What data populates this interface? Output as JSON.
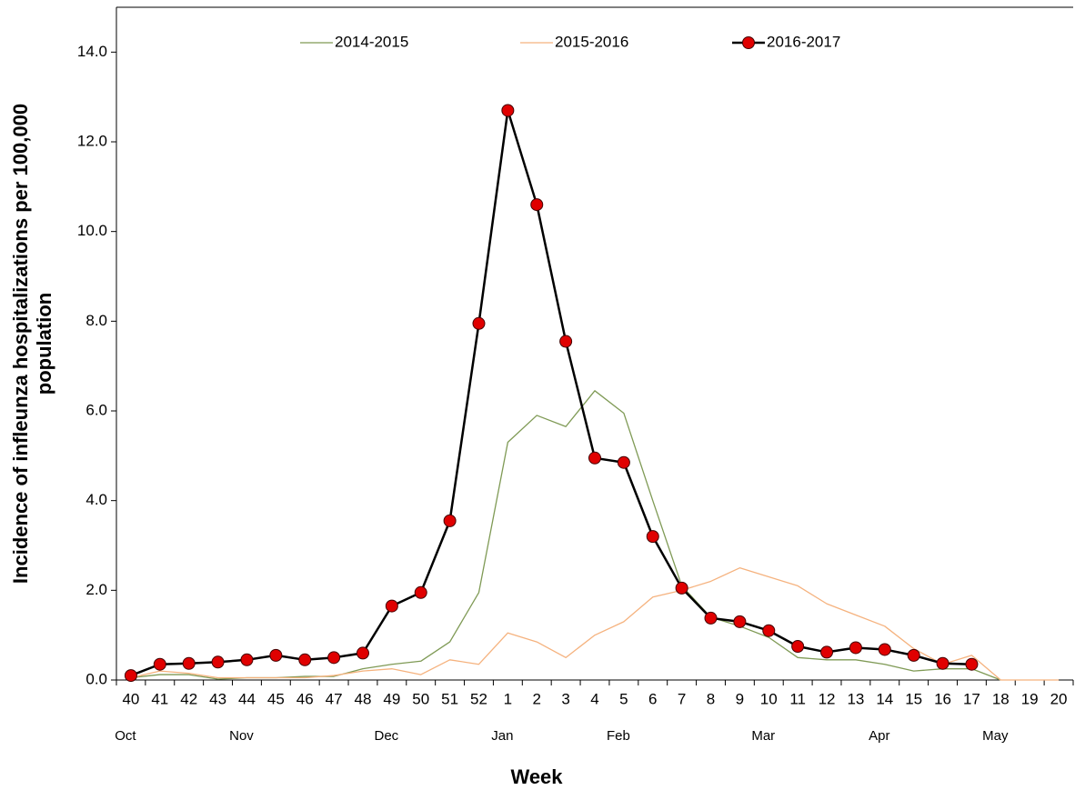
{
  "chart_data": {
    "type": "line",
    "xlabel": "Week",
    "ylabel": [
      "Incidence of infleunza hospitalizations per 100,000",
      "population"
    ],
    "categories": [
      "40",
      "41",
      "42",
      "43",
      "44",
      "45",
      "46",
      "47",
      "48",
      "49",
      "50",
      "51",
      "52",
      "1",
      "2",
      "3",
      "4",
      "5",
      "6",
      "7",
      "8",
      "9",
      "10",
      "11",
      "12",
      "13",
      "14",
      "15",
      "16",
      "17",
      "18",
      "19",
      "20"
    ],
    "months": [
      "Oct",
      null,
      null,
      null,
      "Nov",
      null,
      null,
      null,
      null,
      "Dec",
      null,
      null,
      null,
      "Jan",
      null,
      null,
      null,
      "Feb",
      null,
      null,
      null,
      null,
      "Mar",
      null,
      null,
      null,
      "Apr",
      null,
      null,
      null,
      "May",
      null,
      null
    ],
    "ylim": [
      0,
      15
    ],
    "yticks": [
      {
        "value": 0,
        "label": "0.0"
      },
      {
        "value": 2,
        "label": "2.0"
      },
      {
        "value": 4,
        "label": "4.0"
      },
      {
        "value": 6,
        "label": "6.0"
      },
      {
        "value": 8,
        "label": "8.0"
      },
      {
        "value": 10,
        "label": "10.0"
      },
      {
        "value": 12,
        "label": "12.0"
      },
      {
        "value": 14,
        "label": "14.0"
      }
    ],
    "grid": false,
    "legend": "top",
    "series": [
      {
        "name": "2014-2015",
        "color": "#7f9a55",
        "width": 1.3,
        "marker": false,
        "values": [
          0.05,
          0.12,
          0.12,
          0.02,
          0.05,
          0.05,
          0.08,
          0.08,
          0.25,
          0.35,
          0.42,
          0.85,
          1.95,
          5.3,
          5.9,
          5.65,
          6.45,
          5.95,
          4.0,
          2.1,
          1.4,
          1.2,
          0.95,
          0.5,
          0.45,
          0.45,
          0.35,
          0.2,
          0.25,
          0.25,
          0,
          null,
          null
        ]
      },
      {
        "name": "2015-2016",
        "color": "#f5b27e",
        "width": 1.3,
        "marker": false,
        "values": [
          0.05,
          0.2,
          0.15,
          0.05,
          0.05,
          0.05,
          0.05,
          0.1,
          0.2,
          0.25,
          0.12,
          0.45,
          0.35,
          1.05,
          0.85,
          0.5,
          1.0,
          1.3,
          1.85,
          2.0,
          2.2,
          2.5,
          2.3,
          2.1,
          1.7,
          1.45,
          1.2,
          0.7,
          0.35,
          0.55,
          0,
          0,
          0
        ]
      },
      {
        "name": "2016-2017",
        "color": "#000000",
        "width": 2.5,
        "marker": true,
        "marker_color": "#e00000",
        "values": [
          0.1,
          0.35,
          0.37,
          0.4,
          0.45,
          0.55,
          0.45,
          0.5,
          0.6,
          1.65,
          1.95,
          3.55,
          7.95,
          12.7,
          10.6,
          7.55,
          4.95,
          4.85,
          3.2,
          2.05,
          1.38,
          1.3,
          1.1,
          0.75,
          0.62,
          0.72,
          0.68,
          0.55,
          0.37,
          0.35,
          null,
          null,
          null
        ]
      }
    ]
  }
}
